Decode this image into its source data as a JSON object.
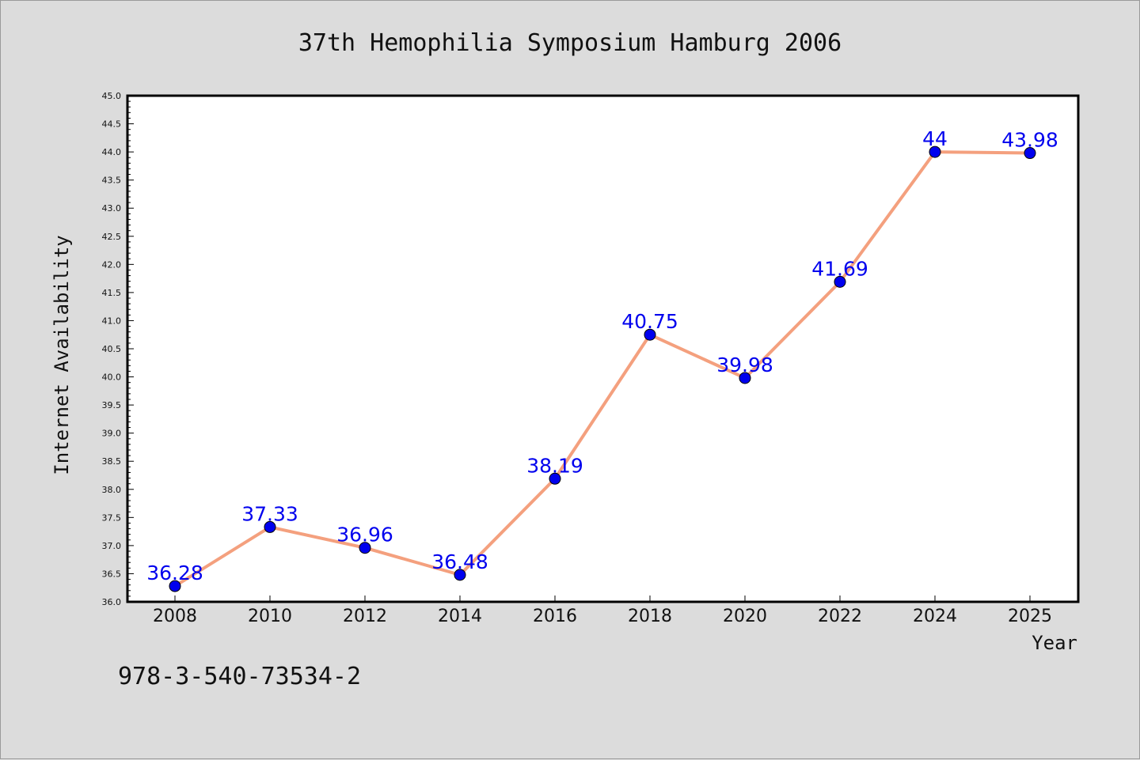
{
  "chart_data": {
    "type": "line",
    "title": "37th Hemophilia Symposium Hamburg 2006",
    "xlabel": "Year",
    "ylabel": "Internet Availability",
    "categories": [
      "2008",
      "2010",
      "2012",
      "2014",
      "2016",
      "2018",
      "2020",
      "2022",
      "2024",
      "2025"
    ],
    "series": [
      {
        "values": [
          36.28,
          37.33,
          36.96,
          36.48,
          38.19,
          40.75,
          39.98,
          41.69,
          44,
          43.98
        ],
        "data_labels": [
          "36.28",
          "37.33",
          "36.96",
          "36.48",
          "38.19",
          "40.75",
          "39.98",
          "41.69",
          "44",
          "43.98"
        ],
        "line_color": "#f4a07e",
        "marker_color": "#0000ee",
        "label_color": "#0000ee"
      }
    ],
    "ylim": [
      36.0,
      45.0
    ],
    "yticks": [
      "36.0",
      "36.5",
      "37.0",
      "37.5",
      "38.0",
      "38.5",
      "39.0",
      "39.5",
      "40.0",
      "40.5",
      "41.0",
      "41.5",
      "42.0",
      "42.5",
      "43.0",
      "43.5",
      "44.0",
      "44.5",
      "45.0"
    ],
    "grid": false,
    "legend": "none"
  },
  "footnote": "978-3-540-73534-2",
  "colors": {
    "background": "#dcdcdc",
    "plot_background": "#ffffff",
    "axis": "#000000"
  }
}
